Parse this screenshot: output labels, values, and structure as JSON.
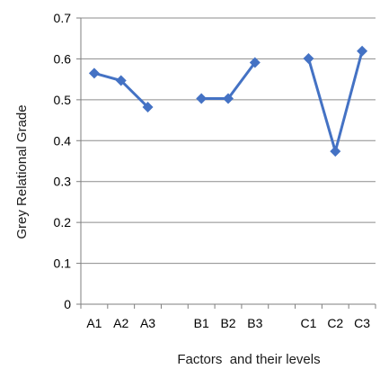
{
  "chart_data": {
    "type": "line",
    "title": "",
    "xlabel": "Factors  and their levels",
    "ylabel": "Grey Relational Grade",
    "ylim": [
      0,
      0.7
    ],
    "yticks": [
      "0",
      "0.1",
      "0.2",
      "0.3",
      "0.4",
      "0.5",
      "0.6",
      "0.7"
    ],
    "categories": [
      "A1",
      "A2",
      "A3",
      "",
      "B1",
      "B2",
      "B3",
      "",
      "C1",
      "C2",
      "C3"
    ],
    "grid": "horizontal",
    "legend": "none",
    "colors": {
      "series": "#4472C4",
      "grid": "#8c8c8c",
      "axis": "#7f7f7f"
    },
    "series": [
      {
        "name": "",
        "x": [
          "A1",
          "A2",
          "A3"
        ],
        "values": [
          0.565,
          0.547,
          0.482
        ]
      },
      {
        "name": "",
        "x": [
          "B1",
          "B2",
          "B3"
        ],
        "values": [
          0.503,
          0.503,
          0.591
        ]
      },
      {
        "name": "",
        "x": [
          "C1",
          "C2",
          "C3"
        ],
        "values": [
          0.601,
          0.374,
          0.619
        ]
      }
    ]
  }
}
